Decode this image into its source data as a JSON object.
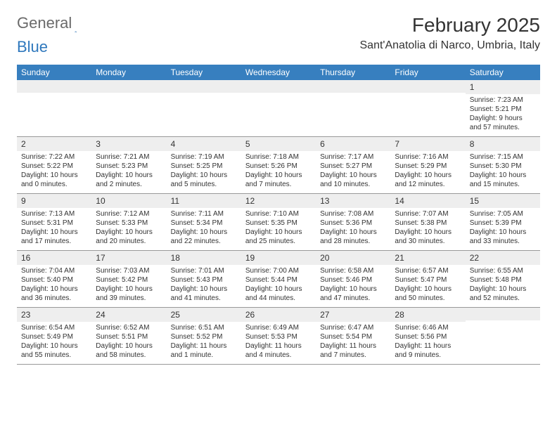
{
  "logo": {
    "part1": "General",
    "part2": "Blue"
  },
  "title": "February 2025",
  "location": "Sant'Anatolia di Narco, Umbria, Italy",
  "colors": {
    "header_bg": "#377fbf",
    "header_text": "#ffffff",
    "daynum_bg": "#eeeeee",
    "text": "#333333",
    "logo_gray": "#6a6a6a",
    "logo_blue": "#2f78bd",
    "border": "#999999",
    "page_bg": "#ffffff"
  },
  "day_headers": [
    "Sunday",
    "Monday",
    "Tuesday",
    "Wednesday",
    "Thursday",
    "Friday",
    "Saturday"
  ],
  "weeks": [
    [
      {
        "n": "",
        "lines": [
          "",
          "",
          "",
          ""
        ]
      },
      {
        "n": "",
        "lines": [
          "",
          "",
          "",
          ""
        ]
      },
      {
        "n": "",
        "lines": [
          "",
          "",
          "",
          ""
        ]
      },
      {
        "n": "",
        "lines": [
          "",
          "",
          "",
          ""
        ]
      },
      {
        "n": "",
        "lines": [
          "",
          "",
          "",
          ""
        ]
      },
      {
        "n": "",
        "lines": [
          "",
          "",
          "",
          ""
        ]
      },
      {
        "n": "1",
        "lines": [
          "Sunrise: 7:23 AM",
          "Sunset: 5:21 PM",
          "Daylight: 9 hours",
          "and 57 minutes."
        ]
      }
    ],
    [
      {
        "n": "2",
        "lines": [
          "Sunrise: 7:22 AM",
          "Sunset: 5:22 PM",
          "Daylight: 10 hours",
          "and 0 minutes."
        ]
      },
      {
        "n": "3",
        "lines": [
          "Sunrise: 7:21 AM",
          "Sunset: 5:23 PM",
          "Daylight: 10 hours",
          "and 2 minutes."
        ]
      },
      {
        "n": "4",
        "lines": [
          "Sunrise: 7:19 AM",
          "Sunset: 5:25 PM",
          "Daylight: 10 hours",
          "and 5 minutes."
        ]
      },
      {
        "n": "5",
        "lines": [
          "Sunrise: 7:18 AM",
          "Sunset: 5:26 PM",
          "Daylight: 10 hours",
          "and 7 minutes."
        ]
      },
      {
        "n": "6",
        "lines": [
          "Sunrise: 7:17 AM",
          "Sunset: 5:27 PM",
          "Daylight: 10 hours",
          "and 10 minutes."
        ]
      },
      {
        "n": "7",
        "lines": [
          "Sunrise: 7:16 AM",
          "Sunset: 5:29 PM",
          "Daylight: 10 hours",
          "and 12 minutes."
        ]
      },
      {
        "n": "8",
        "lines": [
          "Sunrise: 7:15 AM",
          "Sunset: 5:30 PM",
          "Daylight: 10 hours",
          "and 15 minutes."
        ]
      }
    ],
    [
      {
        "n": "9",
        "lines": [
          "Sunrise: 7:13 AM",
          "Sunset: 5:31 PM",
          "Daylight: 10 hours",
          "and 17 minutes."
        ]
      },
      {
        "n": "10",
        "lines": [
          "Sunrise: 7:12 AM",
          "Sunset: 5:33 PM",
          "Daylight: 10 hours",
          "and 20 minutes."
        ]
      },
      {
        "n": "11",
        "lines": [
          "Sunrise: 7:11 AM",
          "Sunset: 5:34 PM",
          "Daylight: 10 hours",
          "and 22 minutes."
        ]
      },
      {
        "n": "12",
        "lines": [
          "Sunrise: 7:10 AM",
          "Sunset: 5:35 PM",
          "Daylight: 10 hours",
          "and 25 minutes."
        ]
      },
      {
        "n": "13",
        "lines": [
          "Sunrise: 7:08 AM",
          "Sunset: 5:36 PM",
          "Daylight: 10 hours",
          "and 28 minutes."
        ]
      },
      {
        "n": "14",
        "lines": [
          "Sunrise: 7:07 AM",
          "Sunset: 5:38 PM",
          "Daylight: 10 hours",
          "and 30 minutes."
        ]
      },
      {
        "n": "15",
        "lines": [
          "Sunrise: 7:05 AM",
          "Sunset: 5:39 PM",
          "Daylight: 10 hours",
          "and 33 minutes."
        ]
      }
    ],
    [
      {
        "n": "16",
        "lines": [
          "Sunrise: 7:04 AM",
          "Sunset: 5:40 PM",
          "Daylight: 10 hours",
          "and 36 minutes."
        ]
      },
      {
        "n": "17",
        "lines": [
          "Sunrise: 7:03 AM",
          "Sunset: 5:42 PM",
          "Daylight: 10 hours",
          "and 39 minutes."
        ]
      },
      {
        "n": "18",
        "lines": [
          "Sunrise: 7:01 AM",
          "Sunset: 5:43 PM",
          "Daylight: 10 hours",
          "and 41 minutes."
        ]
      },
      {
        "n": "19",
        "lines": [
          "Sunrise: 7:00 AM",
          "Sunset: 5:44 PM",
          "Daylight: 10 hours",
          "and 44 minutes."
        ]
      },
      {
        "n": "20",
        "lines": [
          "Sunrise: 6:58 AM",
          "Sunset: 5:46 PM",
          "Daylight: 10 hours",
          "and 47 minutes."
        ]
      },
      {
        "n": "21",
        "lines": [
          "Sunrise: 6:57 AM",
          "Sunset: 5:47 PM",
          "Daylight: 10 hours",
          "and 50 minutes."
        ]
      },
      {
        "n": "22",
        "lines": [
          "Sunrise: 6:55 AM",
          "Sunset: 5:48 PM",
          "Daylight: 10 hours",
          "and 52 minutes."
        ]
      }
    ],
    [
      {
        "n": "23",
        "lines": [
          "Sunrise: 6:54 AM",
          "Sunset: 5:49 PM",
          "Daylight: 10 hours",
          "and 55 minutes."
        ]
      },
      {
        "n": "24",
        "lines": [
          "Sunrise: 6:52 AM",
          "Sunset: 5:51 PM",
          "Daylight: 10 hours",
          "and 58 minutes."
        ]
      },
      {
        "n": "25",
        "lines": [
          "Sunrise: 6:51 AM",
          "Sunset: 5:52 PM",
          "Daylight: 11 hours",
          "and 1 minute."
        ]
      },
      {
        "n": "26",
        "lines": [
          "Sunrise: 6:49 AM",
          "Sunset: 5:53 PM",
          "Daylight: 11 hours",
          "and 4 minutes."
        ]
      },
      {
        "n": "27",
        "lines": [
          "Sunrise: 6:47 AM",
          "Sunset: 5:54 PM",
          "Daylight: 11 hours",
          "and 7 minutes."
        ]
      },
      {
        "n": "28",
        "lines": [
          "Sunrise: 6:46 AM",
          "Sunset: 5:56 PM",
          "Daylight: 11 hours",
          "and 9 minutes."
        ]
      },
      {
        "n": "",
        "lines": [
          "",
          "",
          "",
          ""
        ]
      }
    ]
  ]
}
